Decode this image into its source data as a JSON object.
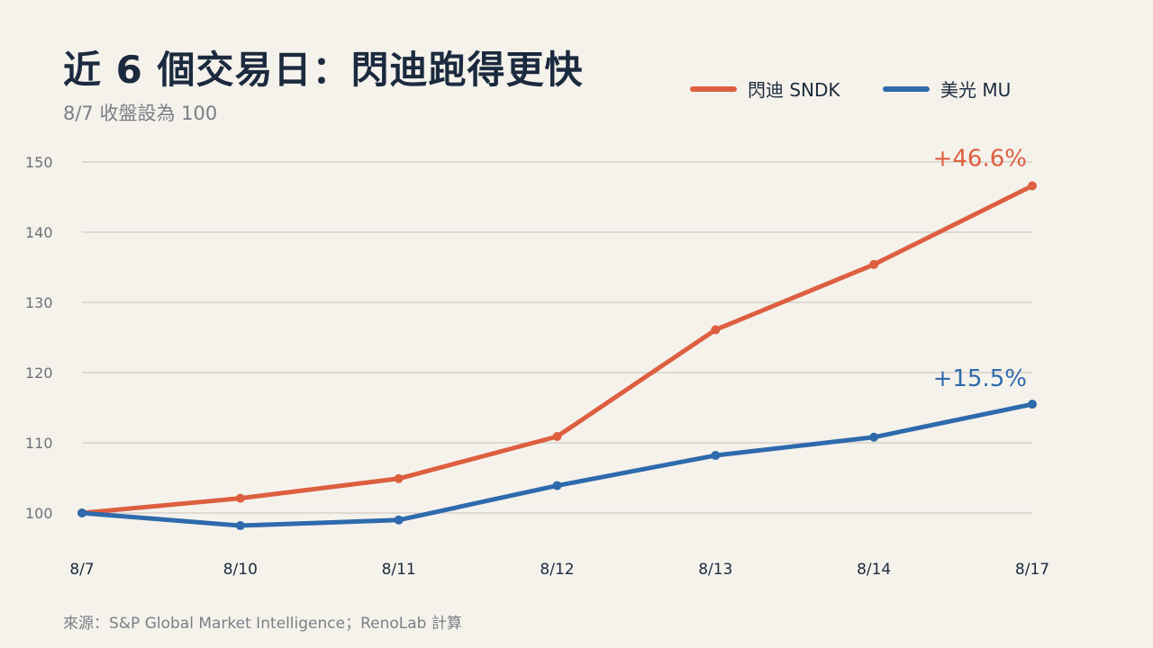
{
  "header": {
    "title": "近 6 個交易日：閃迪跑得更快",
    "subtitle": "8/7 收盤設為 100"
  },
  "footer": {
    "source": "來源：S&P Global Market Intelligence；RenoLab 計算"
  },
  "colors": {
    "sndk": "#dd5f40",
    "mu": "#2e6aac",
    "grid": "#d6d2ca",
    "background": "#f5f2ec"
  },
  "chart_data": {
    "type": "line",
    "categories": [
      "8/7",
      "8/10",
      "8/11",
      "8/12",
      "8/13",
      "8/14",
      "8/17"
    ],
    "series": [
      {
        "name": "閃迪 SNDK",
        "color": "#dd5f40",
        "values": [
          100,
          102.1,
          104.9,
          110.9,
          126.1,
          135.4,
          146.6
        ],
        "end_label": "+46.6%"
      },
      {
        "name": "美光 MU",
        "color": "#2e6aac",
        "values": [
          100,
          98.2,
          99.0,
          103.9,
          108.2,
          110.8,
          115.5
        ],
        "end_label": "+15.5%"
      }
    ],
    "yticks": [
      100,
      110,
      120,
      130,
      140,
      150
    ],
    "ylim": [
      100,
      150
    ],
    "grid": true,
    "legend": "top-right"
  }
}
